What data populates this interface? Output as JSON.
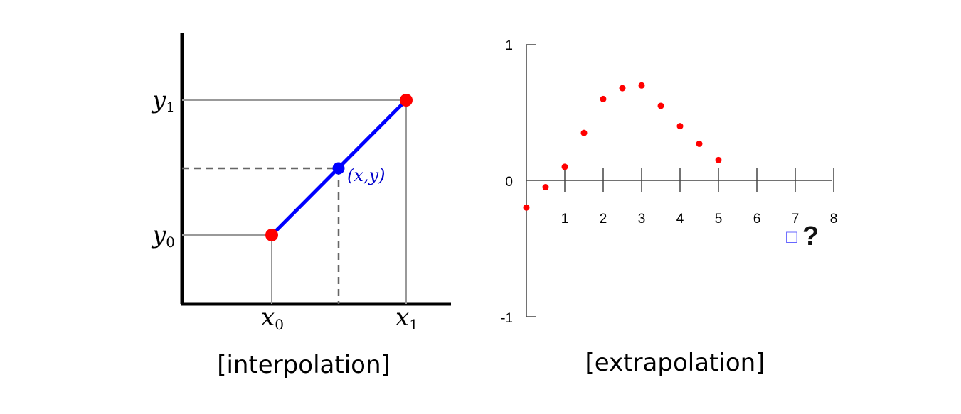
{
  "chart_data": [
    {
      "type": "line",
      "caption": "[interpolation]",
      "x_ticks": [
        {
          "base": "x",
          "sub": "0"
        },
        {
          "base": "x",
          "sub": "1"
        }
      ],
      "y_ticks": [
        {
          "base": "y",
          "sub": "0"
        },
        {
          "base": "y",
          "sub": "1"
        }
      ],
      "endpoint_label": "",
      "interpolated_point_label": "(x,y)",
      "grid": false,
      "colors": {
        "line": "#0000ff",
        "endpoints": "#ff0000",
        "interpolated_point": "#0000ff"
      }
    },
    {
      "type": "scatter",
      "caption": "[extrapolation]",
      "x_tick_labels": [
        "1",
        "2",
        "3",
        "4",
        "5",
        "6",
        "7",
        "8"
      ],
      "y_tick_labels": [
        "1",
        "0",
        "-1"
      ],
      "xlim": [
        0,
        8
      ],
      "ylim": [
        -1,
        1
      ],
      "series": [
        {
          "x": [
            0,
            0.5,
            1,
            1.5,
            2,
            2.5,
            3,
            3.5,
            4,
            4.5,
            5
          ],
          "y": [
            -0.2,
            -0.05,
            0.1,
            0.35,
            0.6,
            0.68,
            0.7,
            0.55,
            0.4,
            0.27,
            0.15
          ]
        }
      ],
      "unknown_marker": {
        "x": 7,
        "glyph": "□",
        "label": "?"
      },
      "grid": false,
      "colors": {
        "points": "#ff0000",
        "unknown": "#6666ff"
      }
    }
  ]
}
